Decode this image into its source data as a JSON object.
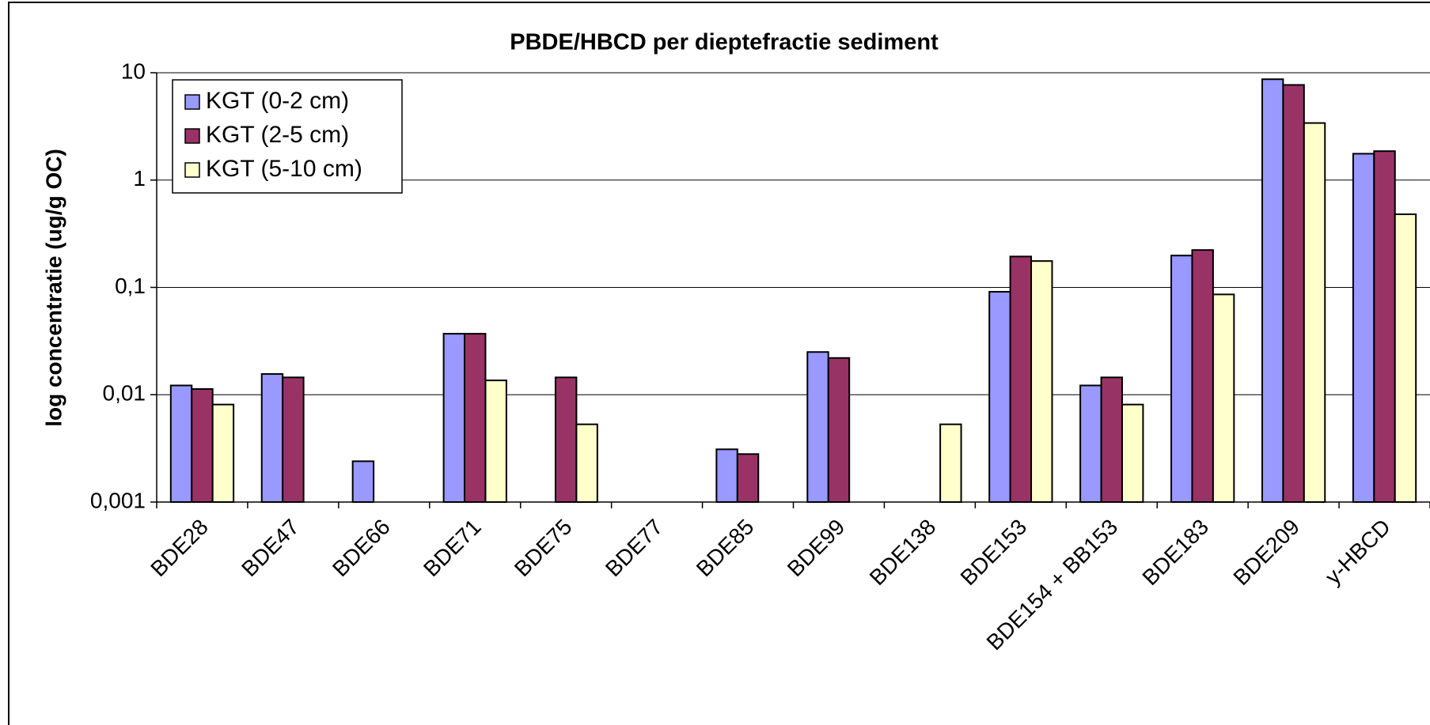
{
  "chart_data": {
    "type": "bar",
    "title": "PBDE/HBCD per dieptefractie sediment",
    "y_label": "log concentratie (ug/g OC)",
    "log_scale": true,
    "grid": true,
    "legend": "top-left",
    "categories": [
      "BDE28",
      "BDE47",
      "BDE66",
      "BDE71",
      "BDE75",
      "BDE77",
      "BDE85",
      "BDE99",
      "BDE138",
      "BDE153",
      "BDE154 + BB153",
      "BDE183",
      "BDE209",
      "y-HBCD"
    ],
    "series": [
      {
        "name": "KGT (0-2 cm)",
        "color": "#9999ff",
        "values": [
          0.0122,
          0.0156,
          0.0024,
          0.037,
          null,
          null,
          0.0031,
          0.025,
          null,
          0.091,
          0.0122,
          0.198,
          8.7,
          1.76
        ]
      },
      {
        "name": "KGT (2-5 cm)",
        "color": "#993366",
        "values": [
          0.0113,
          0.0145,
          null,
          0.037,
          0.0145,
          null,
          0.0028,
          0.022,
          null,
          0.194,
          0.0145,
          0.223,
          7.7,
          1.86
        ]
      },
      {
        "name": "KGT (5-10 cm)",
        "color": "#ffffcc",
        "values": [
          0.0081,
          null,
          null,
          0.0136,
          0.0053,
          null,
          null,
          null,
          0.0053,
          0.176,
          0.0081,
          0.086,
          3.4,
          0.48
        ]
      }
    ],
    "ylim": [
      0.001,
      10
    ],
    "yticks": [
      {
        "value": 0.001,
        "label": "0,001"
      },
      {
        "value": 0.01,
        "label": "0,01"
      },
      {
        "value": 0.1,
        "label": "0,1"
      },
      1,
      10
    ]
  }
}
